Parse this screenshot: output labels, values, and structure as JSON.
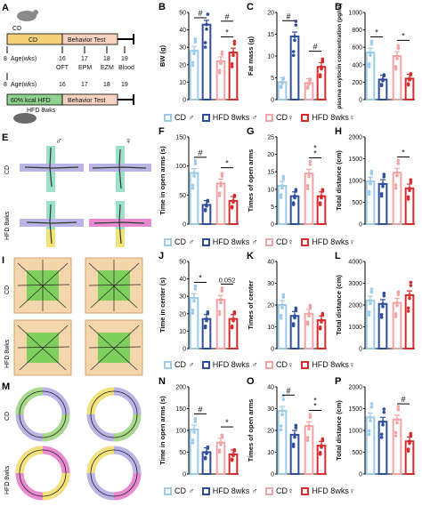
{
  "colors": {
    "cd_m": "#9ecbe8",
    "hfd_m": "#2e4e9c",
    "cd_f": "#f2a3a3",
    "hfd_f": "#d92b2b",
    "green": "#6fbf4a",
    "purple": "#8a7bc4",
    "yellow": "#f3e27a",
    "pink": "#e88ad0",
    "beige": "#f4d6ad"
  },
  "panel_A": {
    "label": "A",
    "top_text": "CD",
    "cd_bar": "CD",
    "behavior": "Behavior Test",
    "age_label_top": "Age(wks)",
    "ages_top": [
      "8",
      "16",
      "17",
      "18",
      "19"
    ],
    "tests": [
      "OFT",
      "EPM",
      "EZM",
      "Blood"
    ],
    "age_label_bottom": "Age(wks)",
    "ages_bottom": [
      "8",
      "16",
      "17",
      "18",
      "19"
    ],
    "hfd_bar": "60% kcal HFD",
    "behavior2": "Behavior Test",
    "mouse_label": "HFD 8wks"
  },
  "panel_E": {
    "label": "E",
    "rows": [
      "CD",
      "HFD 8wks"
    ],
    "sexes": [
      "♂",
      "♀"
    ]
  },
  "panel_I": {
    "label": "I",
    "rows": [
      "CD",
      "HFD 8wks"
    ]
  },
  "panel_M": {
    "label": "M",
    "rows": [
      "CD",
      "HFD 8wks"
    ]
  },
  "legend_row1": [
    "CD ♂",
    "HFD 8wks ♂",
    "CD♀",
    "HFD 8wks♀"
  ],
  "legend_row2": [
    "CD ♂",
    "HFD 8wks ♂",
    "CD♀",
    "HFD 8wks♀"
  ],
  "legend_row3": [
    "CD ♂",
    "HFD 8wks ♂",
    "CD♀",
    "HFD 8wks♀"
  ],
  "legend_row4": [
    "CD ♂",
    "HFD 8wks ♂",
    "CD♀",
    "HFD 8wks♀"
  ],
  "chart_data": [
    {
      "panel": "B",
      "type": "bar",
      "ylabel": "BW (g)",
      "ylim": [
        0,
        50
      ],
      "yticks": [
        "0",
        "10",
        "20",
        "30",
        "40",
        "50"
      ],
      "values": [
        28,
        43,
        22,
        27
      ],
      "sig": [
        {
          "a": 0,
          "b": 1,
          "t": "#"
        },
        {
          "a": 2,
          "b": 3,
          "t": "*"
        },
        {
          "a": 2,
          "b": 3,
          "t": "#",
          "lvl": 2
        }
      ]
    },
    {
      "panel": "C",
      "type": "bar",
      "ylabel": "Fat mass (g)",
      "ylim": [
        0,
        20
      ],
      "yticks": [
        "0",
        "5",
        "10",
        "15",
        "20"
      ],
      "values": [
        4,
        14.5,
        3.8,
        7.5
      ],
      "sig": [
        {
          "a": 0,
          "b": 1,
          "t": "#"
        },
        {
          "a": 2,
          "b": 3,
          "t": "#"
        }
      ]
    },
    {
      "panel": "D",
      "type": "bar",
      "ylabel": "plasma oxytocin concentration (pg/ml)",
      "ylim": [
        0,
        1000
      ],
      "yticks": [
        "0",
        "200",
        "400",
        "600",
        "800",
        "1000"
      ],
      "values": [
        540,
        230,
        500,
        240
      ],
      "sig": [
        {
          "a": 0,
          "b": 1,
          "t": "*"
        },
        {
          "a": 2,
          "b": 3,
          "t": "*"
        }
      ]
    },
    {
      "panel": "F",
      "type": "bar",
      "ylabel": "Time in open arms (s)",
      "ylim": [
        0,
        150
      ],
      "yticks": [
        "0",
        "50",
        "100",
        "150"
      ],
      "values": [
        88,
        33,
        70,
        40
      ],
      "sig": [
        {
          "a": 0,
          "b": 1,
          "t": "#"
        },
        {
          "a": 2,
          "b": 3,
          "t": "*"
        }
      ]
    },
    {
      "panel": "G",
      "type": "bar",
      "ylabel": "Times of open arms",
      "ylim": [
        0,
        25
      ],
      "yticks": [
        "0",
        "5",
        "10",
        "15",
        "20",
        "25"
      ],
      "values": [
        11,
        8,
        14.5,
        8
      ],
      "sig": [
        {
          "a": 2,
          "b": 3,
          "t": "*\n*"
        }
      ]
    },
    {
      "panel": "H",
      "type": "bar",
      "ylabel": "Total distance (cm)",
      "ylim": [
        0,
        2000
      ],
      "yticks": [
        "0",
        "500",
        "1000",
        "1500",
        "2000"
      ],
      "values": [
        980,
        920,
        1180,
        820
      ],
      "sig": [
        {
          "a": 2,
          "b": 3,
          "t": "*"
        }
      ]
    },
    {
      "panel": "J",
      "type": "bar",
      "ylabel": "Time in center (s)",
      "ylim": [
        0,
        50
      ],
      "yticks": [
        "0",
        "10",
        "20",
        "30",
        "40",
        "50"
      ],
      "values": [
        29,
        17,
        28,
        17
      ],
      "sig": [
        {
          "a": 0,
          "b": 1,
          "t": "*"
        },
        {
          "a": 2,
          "b": 3,
          "t": "0.052"
        }
      ]
    },
    {
      "panel": "K",
      "type": "bar",
      "ylabel": "Times of center",
      "ylim": [
        0,
        40
      ],
      "yticks": [
        "0",
        "10",
        "20",
        "30",
        "40"
      ],
      "values": [
        20,
        15,
        16,
        13
      ],
      "sig": []
    },
    {
      "panel": "L",
      "type": "bar",
      "ylabel": "Total distance (cm)",
      "ylim": [
        0,
        4000
      ],
      "yticks": [
        "0",
        "1000",
        "2000",
        "3000",
        "4000"
      ],
      "values": [
        2200,
        2050,
        2100,
        2450
      ],
      "sig": []
    },
    {
      "panel": "N",
      "type": "bar",
      "ylabel": "Time in open arms (s)",
      "ylim": [
        0,
        200
      ],
      "yticks": [
        "0",
        "50",
        "100",
        "150",
        "200"
      ],
      "values": [
        102,
        50,
        72,
        45
      ],
      "sig": [
        {
          "a": 0,
          "b": 1,
          "t": "#"
        },
        {
          "a": 2,
          "b": 3,
          "t": "*"
        }
      ]
    },
    {
      "panel": "O",
      "type": "bar",
      "ylabel": "Times of open arms",
      "ylim": [
        0,
        40
      ],
      "yticks": [
        "0",
        "10",
        "20",
        "30",
        "40"
      ],
      "values": [
        29,
        18,
        22,
        13
      ],
      "sig": [
        {
          "a": 0,
          "b": 1,
          "t": "#"
        },
        {
          "a": 2,
          "b": 3,
          "t": "*\n*"
        }
      ]
    },
    {
      "panel": "P",
      "type": "bar",
      "ylabel": "Total distance (cm)",
      "ylim": [
        0,
        2000
      ],
      "yticks": [
        "0",
        "500",
        "1000",
        "1500",
        "2000"
      ],
      "values": [
        1300,
        1200,
        1250,
        750
      ],
      "sig": [
        {
          "a": 2,
          "b": 3,
          "t": "#"
        }
      ]
    }
  ]
}
